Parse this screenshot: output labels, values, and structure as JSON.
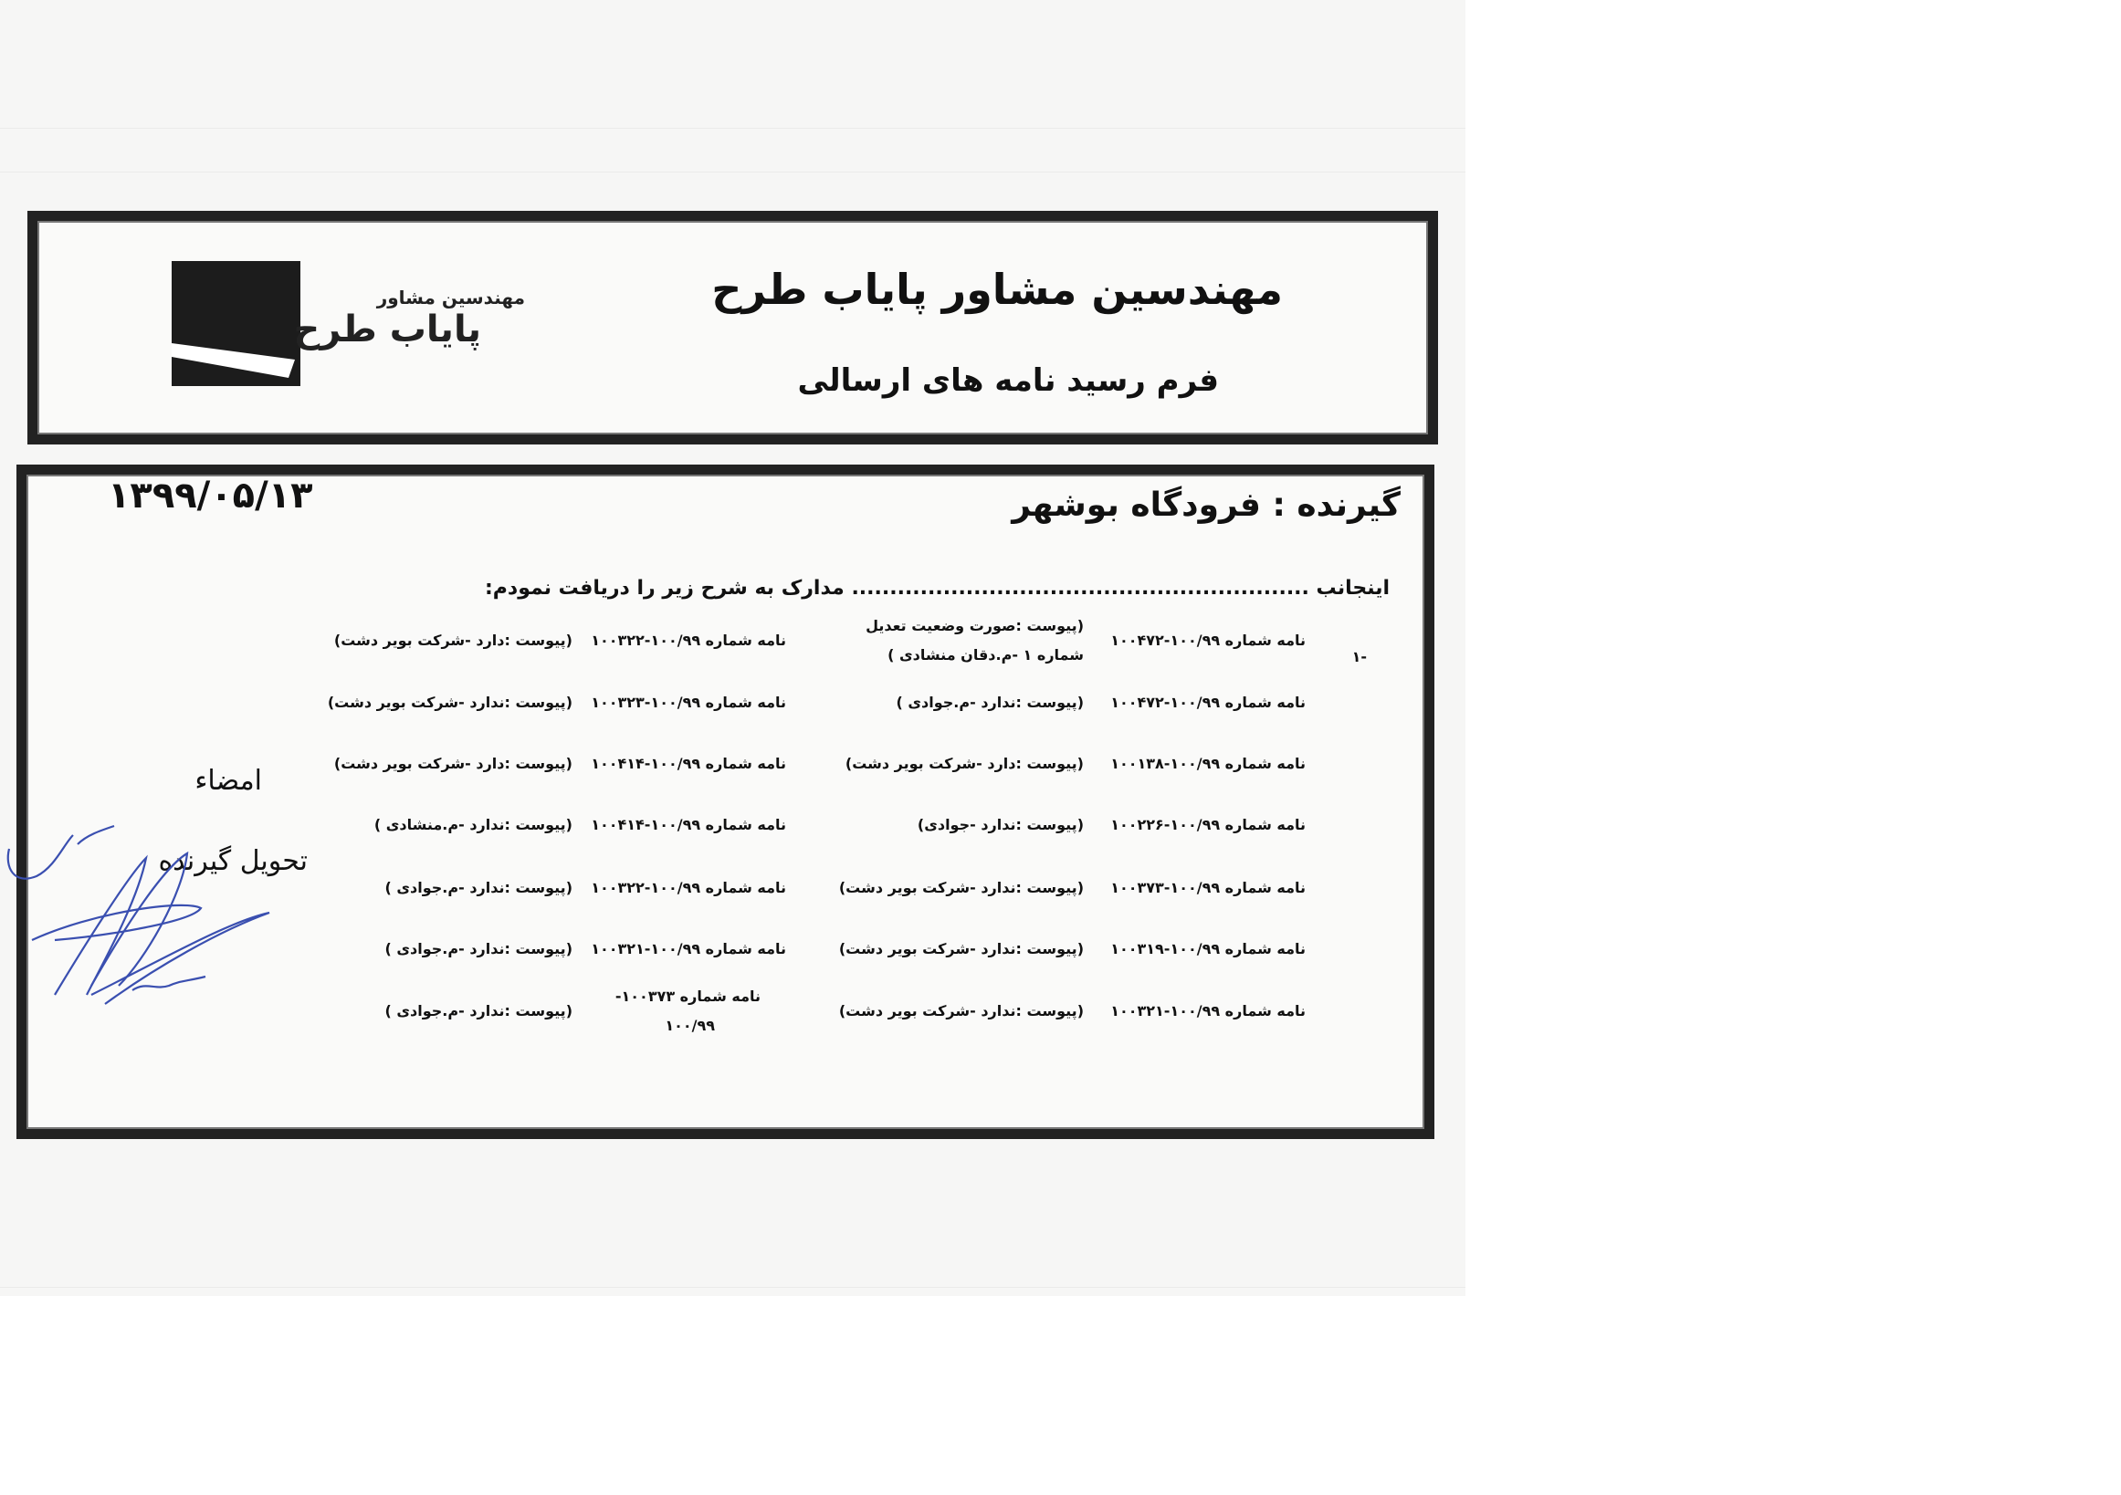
{
  "header": {
    "title": "مهندسین مشاور پایاب طرح",
    "subtitle": "فرم رسید نامه های ارسالی",
    "logo_text_small": "مهندسین مشاور",
    "logo_text_large": "پایاب طرح"
  },
  "receipt": {
    "recipient": "گیرنده : فرودگاه بوشهر",
    "date": "۱۳۹۹/۰۵/۱۳",
    "statement": "اینجانب ............................................................ مدارک به شرح زیر را دریافت نمودم:",
    "row_number": "-۱",
    "signature_label": "امضاء",
    "receiver_label": "تحویل گیرنده"
  },
  "letters_right": [
    {
      "ref": "نامه شماره ۱۰۰/۹۹-۱۰۰۴۷۲",
      "attachment": "(پیوست :صورت وضعیت تعدیل",
      "attachment2": "شماره ۱ -م.دقان منشادی )"
    },
    {
      "ref": "نامه شماره ۱۰۰/۹۹-۱۰۰۴۷۲",
      "attachment": "(پیوست :ندارد -م.جوادی )"
    },
    {
      "ref": "نامه شماره ۱۰۰/۹۹-۱۰۰۱۳۸",
      "attachment": "(پیوست :دارد -شرکت بویر دشت)"
    },
    {
      "ref": "نامه شماره ۱۰۰/۹۹-۱۰۰۲۲۶",
      "attachment": "(پیوست :ندارد -جوادی)"
    },
    {
      "ref": "نامه شماره ۱۰۰/۹۹-۱۰۰۳۷۳",
      "attachment": "(پیوست :ندارد -شرکت بویر دشت)"
    },
    {
      "ref": "نامه شماره ۱۰۰/۹۹-۱۰۰۳۱۹",
      "attachment": "(پیوست :ندارد -شرکت بویر دشت)"
    },
    {
      "ref": "نامه شماره ۱۰۰/۹۹-۱۰۰۳۲۱",
      "attachment": "(پیوست :ندارد -شرکت بویر دشت)"
    }
  ],
  "letters_left": [
    {
      "ref": "نامه شماره ۱۰۰/۹۹-۱۰۰۳۲۲",
      "attachment": "(پیوست :دارد -شرکت بویر دشت)"
    },
    {
      "ref": "نامه شماره ۱۰۰/۹۹-۱۰۰۳۲۳",
      "attachment": "(پیوست :ندارد -شرکت بویر دشت)"
    },
    {
      "ref": "نامه شماره ۱۰۰/۹۹-۱۰۰۴۱۴",
      "attachment": "(پیوست :دارد -شرکت بویر دشت)"
    },
    {
      "ref": "نامه شماره ۱۰۰/۹۹-۱۰۰۴۱۴",
      "attachment": "(پیوست :ندارد -م.منشادی )"
    },
    {
      "ref": "نامه شماره ۱۰۰/۹۹-۱۰۰۳۲۲",
      "attachment": "(پیوست :ندارد -م.جوادی )"
    },
    {
      "ref": "نامه شماره ۱۰۰/۹۹-۱۰۰۳۲۱",
      "attachment": "(پیوست :ندارد -م.جوادی )"
    },
    {
      "ref": "نامه شماره ۱۰۰۳۷۳-",
      "ref2": "۱۰۰/۹۹",
      "attachment": "(پیوست :ندارد -م.جوادی )"
    }
  ],
  "colors": {
    "ink": "#111111",
    "border": "#222222",
    "signature": "#3a4fb0"
  }
}
